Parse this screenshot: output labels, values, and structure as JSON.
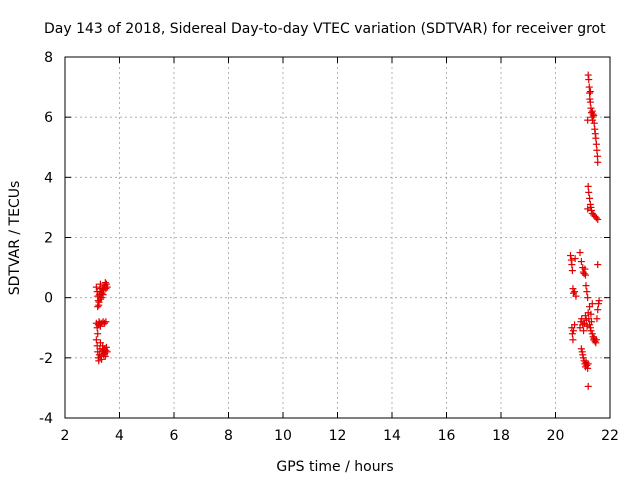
{
  "chart_data": {
    "type": "scatter",
    "title": "Day 143 of 2018, Sidereal Day-to-day VTEC variation (SDTVAR) for receiver grot",
    "xlabel": "GPS time / hours",
    "ylabel": "SDTVAR / TECUs",
    "xlim": [
      2,
      22
    ],
    "ylim": [
      -4,
      8
    ],
    "x_ticks": [
      2,
      4,
      6,
      8,
      10,
      12,
      14,
      16,
      18,
      20,
      22
    ],
    "y_ticks": [
      -4,
      -2,
      0,
      2,
      4,
      6,
      8
    ],
    "x_tick_labels": [
      "2",
      "4",
      "6",
      "8",
      "10",
      "12",
      "14",
      "16",
      "18",
      "20",
      "22"
    ],
    "y_tick_labels": [
      "-4",
      "-2",
      "0",
      "2",
      "4",
      "6",
      "8"
    ],
    "grid": true,
    "marker": "plus",
    "series": [
      {
        "name": "SDTVAR",
        "color": "#e00000",
        "points": [
          [
            3.15,
            0.35
          ],
          [
            3.18,
            0.2
          ],
          [
            3.2,
            0.05
          ],
          [
            3.22,
            -0.1
          ],
          [
            3.24,
            -0.25
          ],
          [
            3.26,
            0.1
          ],
          [
            3.28,
            0.3
          ],
          [
            3.3,
            0.45
          ],
          [
            3.32,
            0.2
          ],
          [
            3.34,
            0.0
          ],
          [
            3.36,
            0.15
          ],
          [
            3.38,
            0.3
          ],
          [
            3.4,
            0.1
          ],
          [
            3.42,
            0.25
          ],
          [
            3.44,
            0.35
          ],
          [
            3.46,
            0.4
          ],
          [
            3.48,
            0.5
          ],
          [
            3.5,
            0.3
          ],
          [
            3.52,
            0.45
          ],
          [
            3.55,
            0.35
          ],
          [
            3.2,
            -0.3
          ],
          [
            3.25,
            -0.15
          ],
          [
            3.3,
            -0.05
          ],
          [
            3.15,
            -0.85
          ],
          [
            3.18,
            -1.0
          ],
          [
            3.2,
            -1.2
          ],
          [
            3.22,
            -0.9
          ],
          [
            3.25,
            -0.8
          ],
          [
            3.28,
            -0.85
          ],
          [
            3.3,
            -0.95
          ],
          [
            3.35,
            -0.85
          ],
          [
            3.4,
            -0.8
          ],
          [
            3.45,
            -0.85
          ],
          [
            3.5,
            -0.8
          ],
          [
            3.15,
            -1.4
          ],
          [
            3.18,
            -1.6
          ],
          [
            3.2,
            -1.8
          ],
          [
            3.22,
            -2.0
          ],
          [
            3.24,
            -2.1
          ],
          [
            3.26,
            -1.9
          ],
          [
            3.28,
            -1.7
          ],
          [
            3.3,
            -1.5
          ],
          [
            3.32,
            -1.95
          ],
          [
            3.34,
            -2.05
          ],
          [
            3.36,
            -1.8
          ],
          [
            3.38,
            -1.6
          ],
          [
            3.4,
            -1.75
          ],
          [
            3.42,
            -1.9
          ],
          [
            3.44,
            -1.7
          ],
          [
            3.46,
            -1.85
          ],
          [
            3.48,
            -1.95
          ],
          [
            3.5,
            -1.75
          ],
          [
            3.52,
            -1.65
          ],
          [
            3.55,
            -1.8
          ],
          [
            20.55,
            1.4
          ],
          [
            20.58,
            1.25
          ],
          [
            20.6,
            1.1
          ],
          [
            20.62,
            0.9
          ],
          [
            20.64,
            0.3
          ],
          [
            20.66,
            0.15
          ],
          [
            20.7,
            0.2
          ],
          [
            20.72,
            1.3
          ],
          [
            20.75,
            0.05
          ],
          [
            20.6,
            -1.0
          ],
          [
            20.62,
            -1.2
          ],
          [
            20.64,
            -1.4
          ],
          [
            20.66,
            -1.1
          ],
          [
            20.7,
            -0.9
          ],
          [
            20.9,
            1.5
          ],
          [
            20.95,
            1.2
          ],
          [
            21.0,
            1.0
          ],
          [
            21.02,
            0.85
          ],
          [
            21.05,
            0.8
          ],
          [
            21.08,
            0.95
          ],
          [
            21.1,
            0.75
          ],
          [
            21.12,
            0.4
          ],
          [
            21.15,
            0.2
          ],
          [
            21.18,
            0.0
          ],
          [
            20.9,
            -1.0
          ],
          [
            20.93,
            -0.8
          ],
          [
            20.96,
            -0.7
          ],
          [
            21.0,
            -0.9
          ],
          [
            21.03,
            -1.1
          ],
          [
            21.06,
            -0.85
          ],
          [
            21.1,
            -0.6
          ],
          [
            21.13,
            -0.75
          ],
          [
            21.16,
            -0.95
          ],
          [
            20.95,
            -1.7
          ],
          [
            20.98,
            -1.8
          ],
          [
            21.0,
            -1.9
          ],
          [
            21.02,
            -2.0
          ],
          [
            21.05,
            -2.1
          ],
          [
            21.08,
            -2.2
          ],
          [
            21.1,
            -2.3
          ],
          [
            21.12,
            -2.15
          ],
          [
            21.15,
            -2.25
          ],
          [
            21.18,
            -2.35
          ],
          [
            21.2,
            -2.2
          ],
          [
            21.2,
            -2.95
          ],
          [
            21.2,
            -0.5
          ],
          [
            21.22,
            -0.7
          ],
          [
            21.25,
            -0.9
          ],
          [
            21.28,
            -1.0
          ],
          [
            21.3,
            -1.1
          ],
          [
            21.32,
            -0.8
          ],
          [
            21.35,
            -1.2
          ],
          [
            21.38,
            -1.3
          ],
          [
            21.4,
            -1.4
          ],
          [
            21.42,
            -1.35
          ],
          [
            21.45,
            -1.45
          ],
          [
            21.48,
            -1.5
          ],
          [
            21.5,
            -1.4
          ],
          [
            21.52,
            -0.7
          ],
          [
            21.55,
            -0.4
          ],
          [
            21.58,
            -0.2
          ],
          [
            21.6,
            -0.1
          ],
          [
            21.25,
            -0.3
          ],
          [
            21.3,
            -0.55
          ],
          [
            21.35,
            -0.2
          ],
          [
            21.55,
            1.1
          ],
          [
            21.2,
            7.4
          ],
          [
            21.22,
            7.25
          ],
          [
            21.24,
            7.0
          ],
          [
            21.25,
            6.8
          ],
          [
            21.26,
            6.6
          ],
          [
            21.28,
            6.5
          ],
          [
            21.3,
            6.3
          ],
          [
            21.32,
            6.15
          ],
          [
            21.34,
            6.0
          ],
          [
            21.36,
            5.9
          ],
          [
            21.38,
            6.1
          ],
          [
            21.4,
            6.05
          ],
          [
            21.42,
            5.8
          ],
          [
            21.44,
            5.6
          ],
          [
            21.46,
            5.45
          ],
          [
            21.48,
            5.3
          ],
          [
            21.5,
            5.1
          ],
          [
            21.52,
            4.9
          ],
          [
            21.54,
            4.7
          ],
          [
            21.55,
            4.5
          ],
          [
            21.18,
            5.9
          ],
          [
            21.28,
            6.85
          ],
          [
            21.35,
            6.2
          ],
          [
            21.2,
            3.7
          ],
          [
            21.22,
            3.5
          ],
          [
            21.25,
            3.3
          ],
          [
            21.28,
            3.1
          ],
          [
            21.3,
            3.0
          ],
          [
            21.32,
            2.9
          ],
          [
            21.35,
            2.8
          ],
          [
            21.4,
            2.75
          ],
          [
            21.45,
            2.7
          ],
          [
            21.5,
            2.65
          ],
          [
            21.55,
            2.6
          ],
          [
            21.18,
            2.95
          ]
        ]
      }
    ]
  }
}
